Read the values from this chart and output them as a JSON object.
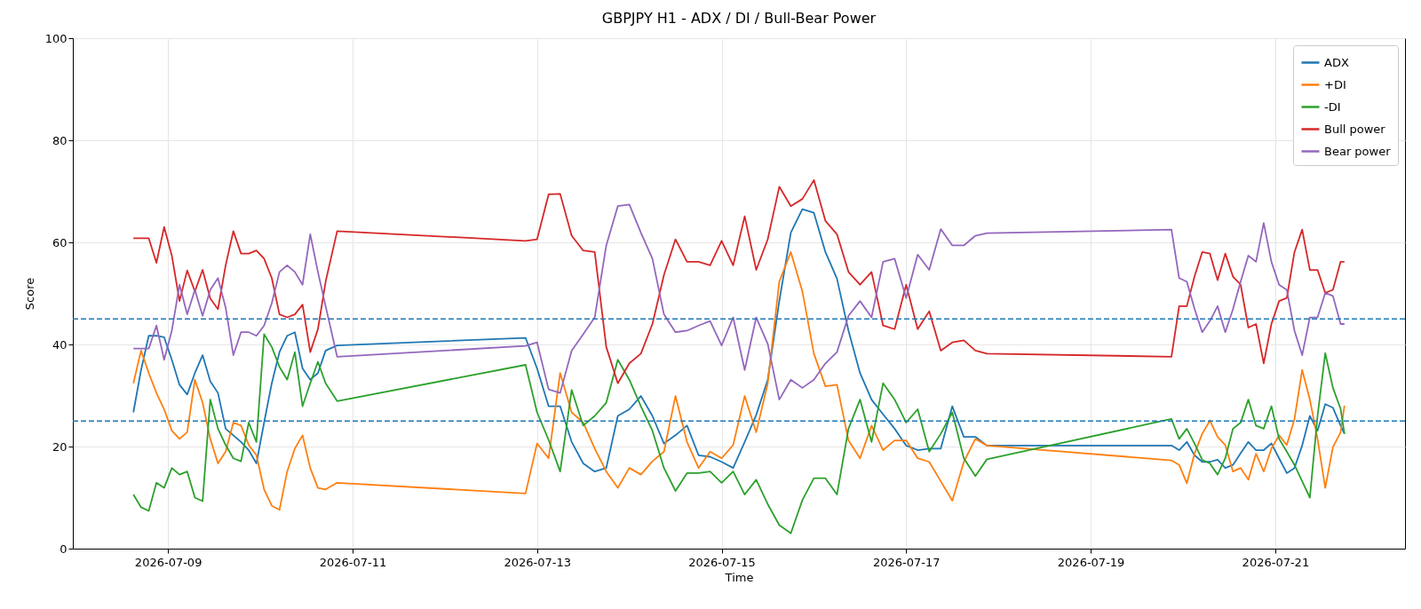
{
  "chart_data": {
    "type": "line",
    "title": "GBPJPY H1 - ADX / DI / Bull-Bear Power",
    "xlabel": "Time",
    "ylabel": "Score",
    "x": [
      "2026-07-08T15:00",
      "2026-07-08T17:00",
      "2026-07-08T19:00",
      "2026-07-08T21:00",
      "2026-07-08T23:00",
      "2026-07-09T01:00",
      "2026-07-09T03:00",
      "2026-07-09T05:00",
      "2026-07-09T07:00",
      "2026-07-09T09:00",
      "2026-07-09T11:00",
      "2026-07-09T13:00",
      "2026-07-09T15:00",
      "2026-07-09T17:00",
      "2026-07-09T19:00",
      "2026-07-09T21:00",
      "2026-07-09T23:00",
      "2026-07-10T01:00",
      "2026-07-10T03:00",
      "2026-07-10T05:00",
      "2026-07-10T07:00",
      "2026-07-10T09:00",
      "2026-07-10T11:00",
      "2026-07-10T13:00",
      "2026-07-10T15:00",
      "2026-07-10T17:00",
      "2026-07-10T20:00",
      "2026-07-12T21:00",
      "2026-07-13T00:00",
      "2026-07-13T03:00",
      "2026-07-13T06:00",
      "2026-07-13T09:00",
      "2026-07-13T12:00",
      "2026-07-13T15:00",
      "2026-07-13T18:00",
      "2026-07-13T21:00",
      "2026-07-14T00:00",
      "2026-07-14T03:00",
      "2026-07-14T06:00",
      "2026-07-14T09:00",
      "2026-07-14T12:00",
      "2026-07-14T15:00",
      "2026-07-14T18:00",
      "2026-07-14T21:00",
      "2026-07-15T00:00",
      "2026-07-15T03:00",
      "2026-07-15T06:00",
      "2026-07-15T09:00",
      "2026-07-15T12:00",
      "2026-07-15T15:00",
      "2026-07-15T18:00",
      "2026-07-15T21:00",
      "2026-07-16T00:00",
      "2026-07-16T03:00",
      "2026-07-16T06:00",
      "2026-07-16T09:00",
      "2026-07-16T12:00",
      "2026-07-16T15:00",
      "2026-07-16T18:00",
      "2026-07-16T21:00",
      "2026-07-17T00:00",
      "2026-07-17T03:00",
      "2026-07-17T06:00",
      "2026-07-17T09:00",
      "2026-07-17T12:00",
      "2026-07-17T15:00",
      "2026-07-17T18:00",
      "2026-07-17T21:00",
      "2026-07-19T21:00",
      "2026-07-19T23:00",
      "2026-07-20T01:00",
      "2026-07-20T03:00",
      "2026-07-20T05:00",
      "2026-07-20T07:00",
      "2026-07-20T09:00",
      "2026-07-20T11:00",
      "2026-07-20T13:00",
      "2026-07-20T15:00",
      "2026-07-20T17:00",
      "2026-07-20T19:00",
      "2026-07-20T21:00",
      "2026-07-20T23:00",
      "2026-07-21T01:00",
      "2026-07-21T03:00",
      "2026-07-21T05:00",
      "2026-07-21T07:00",
      "2026-07-21T09:00",
      "2026-07-21T11:00",
      "2026-07-21T13:00",
      "2026-07-21T15:00",
      "2026-07-21T17:00",
      "2026-07-21T18:00"
    ],
    "series": [
      {
        "name": "ADX",
        "color": "#1f77b4",
        "values": [
          26.7,
          35,
          41.7,
          41.7,
          41.4,
          37,
          32.1,
          30.2,
          34.4,
          37.9,
          32.8,
          30.5,
          23.5,
          22.2,
          20.9,
          19.3,
          16.7,
          24.7,
          32.4,
          38.5,
          41.7,
          42.4,
          35.3,
          33.1,
          34.4,
          38.8,
          39.8,
          41.3,
          35.3,
          27.9,
          27.9,
          20.9,
          16.7,
          15.1,
          15.8,
          26,
          27.3,
          29.9,
          26,
          20.6,
          22.2,
          24.1,
          18.3,
          18,
          17,
          15.8,
          20.9,
          26.2,
          33.1,
          48.5,
          61.9,
          66.5,
          65.8,
          58.1,
          52.9,
          42.7,
          34.4,
          29.2,
          26.3,
          23.5,
          20.2,
          19.3,
          19.6,
          19.6,
          27.9,
          21.9,
          21.9,
          20.2,
          20.2,
          19.3,
          20.9,
          18.3,
          17,
          17,
          17.4,
          15.8,
          16.4,
          18.7,
          20.9,
          19.3,
          19.3,
          20.6,
          17.7,
          14.8,
          15.8,
          20.2,
          26,
          23.1,
          28.3,
          27.6,
          24.1,
          22.5
        ]
      },
      {
        "name": "+DI",
        "color": "#ff7f0e",
        "values": [
          32.4,
          38.8,
          34.4,
          30.5,
          27.3,
          23.1,
          21.5,
          22.8,
          33.1,
          28.6,
          21.5,
          16.7,
          19,
          24.7,
          24.1,
          20.3,
          18.3,
          11.6,
          8.4,
          7.6,
          15.1,
          19.6,
          22.2,
          15.8,
          11.9,
          11.6,
          12.9,
          10.8,
          20.6,
          17.7,
          34.4,
          26.7,
          24.7,
          19.6,
          15.1,
          11.9,
          15.8,
          14.5,
          17.1,
          19,
          29.9,
          20.9,
          15.8,
          19,
          17.7,
          20.3,
          29.9,
          22.8,
          32.4,
          52.3,
          58.1,
          50.4,
          38.2,
          31.8,
          32.1,
          21.2,
          17.7,
          24.1,
          19.3,
          21.2,
          21.2,
          17.7,
          17,
          13.2,
          9.4,
          17,
          21.5,
          20.2,
          17.3,
          16.4,
          12.8,
          18.6,
          22.5,
          25.1,
          21.9,
          20.3,
          15.1,
          15.8,
          13.5,
          18.6,
          15.1,
          19.6,
          22.2,
          20.3,
          25.4,
          35,
          29.2,
          21.5,
          11.9,
          19.9,
          22.8,
          28
        ]
      },
      {
        "name": "-DI",
        "color": "#2ca02c",
        "values": [
          10.6,
          8.1,
          7.4,
          12.9,
          11.9,
          15.8,
          14.5,
          15.1,
          10,
          9.3,
          29.2,
          23.5,
          20.3,
          17.7,
          17.1,
          24.7,
          20.9,
          42,
          39.5,
          35.6,
          33.1,
          38.5,
          27.9,
          32.4,
          36.6,
          32.4,
          28.9,
          36,
          26.7,
          21.3,
          15.1,
          31.1,
          24.1,
          26,
          28.6,
          37,
          33.1,
          27.9,
          23.1,
          15.8,
          11.3,
          14.8,
          14.8,
          15.1,
          12.9,
          15.1,
          10.6,
          13.5,
          8.7,
          4.6,
          3,
          9.5,
          13.8,
          13.8,
          10.6,
          23.5,
          29.2,
          20.9,
          32.4,
          29.2,
          24.7,
          27.3,
          19,
          22.5,
          26.7,
          17.7,
          14.2,
          17.5,
          25.4,
          21.5,
          23.5,
          20.6,
          17.4,
          16.7,
          14.5,
          17.7,
          23.5,
          24.7,
          29.2,
          24.1,
          23.5,
          27.9,
          21.5,
          19,
          16.4,
          13.2,
          10,
          26,
          38.3,
          31.5,
          27.4,
          22.5
        ]
      },
      {
        "name": "Bull power",
        "color": "#d62728",
        "values": [
          60.8,
          60.8,
          60.8,
          56,
          63,
          57.4,
          48.5,
          54.5,
          50.4,
          54.6,
          49,
          46.9,
          55.5,
          62.2,
          57.8,
          57.8,
          58.4,
          56.8,
          53,
          45.9,
          45.3,
          45.9,
          47.8,
          38.5,
          43,
          52.3,
          62.2,
          60.3,
          60.6,
          69.4,
          69.5,
          61.3,
          58.4,
          58.1,
          39.5,
          32.4,
          36.3,
          38.2,
          44,
          53.6,
          60.6,
          56.2,
          56.2,
          55.5,
          60.3,
          55.5,
          65.1,
          54.6,
          60.6,
          70.9,
          67.1,
          68.5,
          72.2,
          64.2,
          61.6,
          54.2,
          51.7,
          54.2,
          43.7,
          43,
          51.7,
          43,
          46.5,
          38.8,
          40.4,
          40.8,
          38.8,
          38.2,
          37.6,
          47.5,
          47.5,
          53.3,
          58.1,
          57.8,
          52.6,
          57.8,
          53.3,
          51.7,
          43.3,
          44,
          36.3,
          44,
          48.5,
          49.1,
          58.1,
          62.5,
          54.6,
          54.6,
          50.1,
          50.7,
          56.2,
          56.2
        ]
      },
      {
        "name": "Bear power",
        "color": "#9467bd",
        "values": [
          39.2,
          39.2,
          39.2,
          43.7,
          37,
          42.7,
          51.7,
          45.9,
          50.7,
          45.6,
          50.7,
          53,
          47.2,
          37.9,
          42.4,
          42.4,
          41.7,
          43.7,
          48.1,
          54.2,
          55.5,
          54.2,
          51.7,
          61.6,
          54.2,
          47.5,
          37.6,
          39.7,
          40.4,
          31.2,
          30.5,
          38.8,
          42,
          45.3,
          59.4,
          67.1,
          67.4,
          61.9,
          56.8,
          45.9,
          42.4,
          42.7,
          43.7,
          44.6,
          39.8,
          45.3,
          35,
          45.3,
          40.1,
          29.2,
          33.1,
          31.5,
          33.1,
          36.3,
          38.5,
          45.6,
          48.5,
          45.3,
          56.2,
          56.8,
          49.1,
          57.6,
          54.6,
          62.6,
          59.4,
          59.4,
          61.3,
          61.8,
          62.5,
          53,
          52.3,
          47,
          42.4,
          44.6,
          47.5,
          42.4,
          46.9,
          52.3,
          57.4,
          56.2,
          63.8,
          56.2,
          51.7,
          50.7,
          42.7,
          37.9,
          45.3,
          45.3,
          50.1,
          49.5,
          44,
          44
        ]
      }
    ],
    "xlim": [
      "2026-07-07T23:15",
      "2026-07-22T09:45"
    ],
    "xticks": [
      "2026-07-09",
      "2026-07-11",
      "2026-07-13",
      "2026-07-15",
      "2026-07-17",
      "2026-07-19",
      "2026-07-21"
    ],
    "ylim": [
      0,
      100
    ],
    "yticks": [
      0,
      20,
      40,
      60,
      80,
      100
    ],
    "ref_lines": [
      {
        "axis": "y",
        "value": 45,
        "color": "#1f77b4",
        "line_style": "dashed"
      },
      {
        "axis": "y",
        "value": 25,
        "color": "#1f77b4",
        "line_style": "dashed"
      }
    ],
    "grid": true,
    "legend": "top right",
    "line_style": "solid"
  }
}
